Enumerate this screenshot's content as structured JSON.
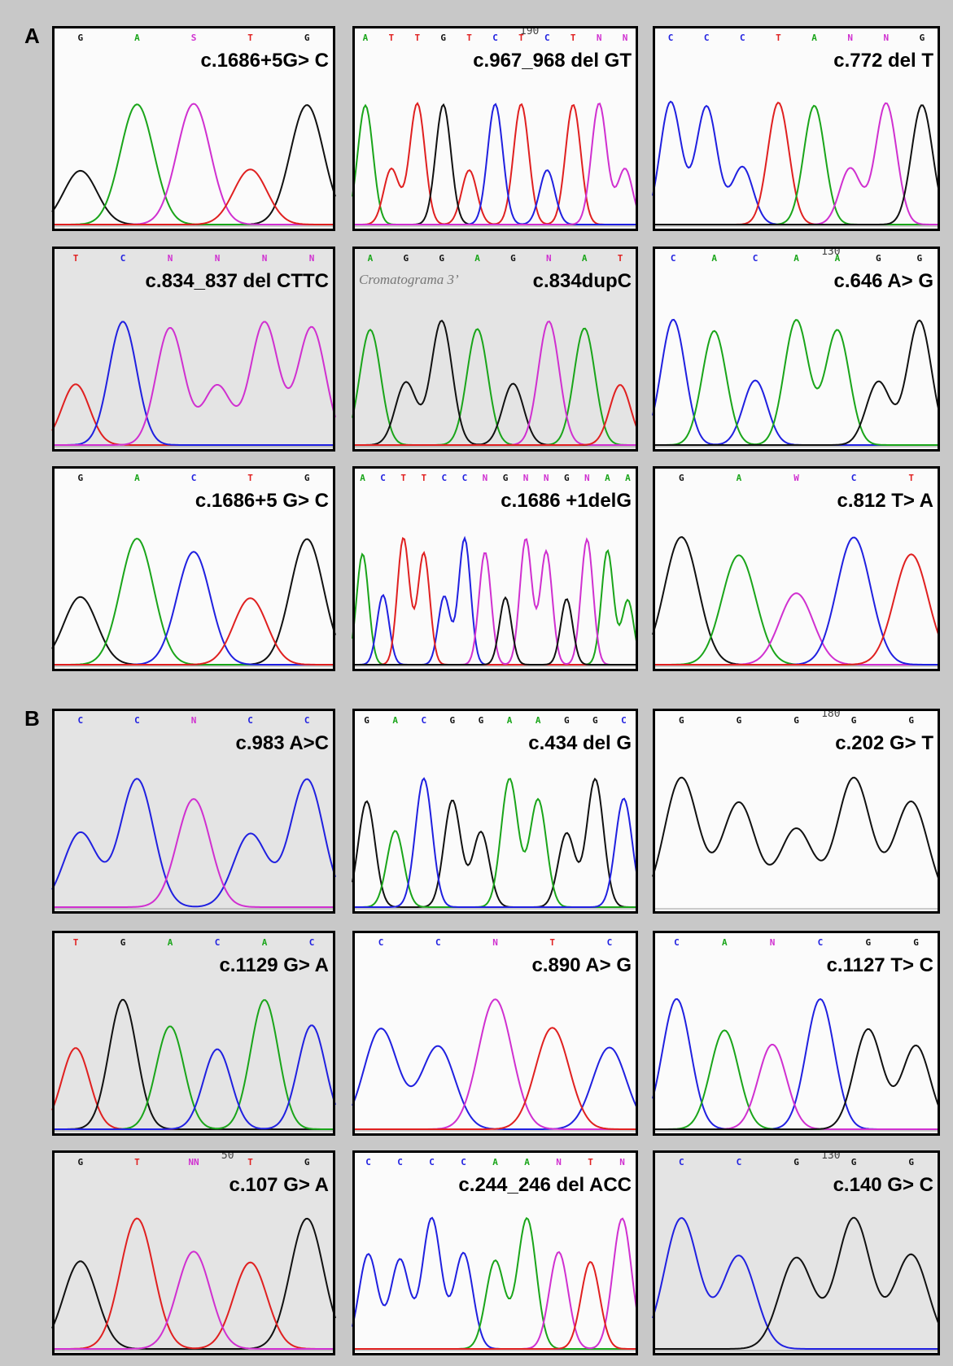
{
  "base_colors": {
    "A": "#1aa51a",
    "C": "#2020e0",
    "G": "#111111",
    "T": "#e02020",
    "other": "#d030d0"
  },
  "sections": [
    {
      "label": "A",
      "panels": [
        {
          "label": "c.1686+5G> C",
          "bases": [
            "G",
            "A",
            "S",
            "T",
            "G"
          ],
          "shaded": false
        },
        {
          "label": "c.967_968 del GT",
          "bases": [
            "A",
            "T",
            "T",
            "G",
            "T",
            "C",
            "T",
            "C",
            "T",
            "N",
            "N"
          ],
          "marker": "190",
          "shaded": false
        },
        {
          "label": "c.772 del T",
          "bases": [
            "C",
            "C",
            "C",
            "T",
            "A",
            "N",
            "N",
            "G"
          ],
          "shaded": false
        },
        {
          "label": "c.834_837 del CTTC",
          "bases": [
            "T",
            "C",
            "N",
            "N",
            "N",
            "N"
          ],
          "shaded": true
        },
        {
          "label": "c.834dupC",
          "bases": [
            "A",
            "G",
            "G",
            "A",
            "G",
            "N",
            "A",
            "T"
          ],
          "note": "Cromatograma 3’",
          "shaded": true
        },
        {
          "label": "c.646 A> G",
          "bases": [
            "C",
            "A",
            "C",
            "A",
            "A",
            "G",
            "G"
          ],
          "marker": "130",
          "shaded": false
        },
        {
          "label": "c.1686+5 G> C",
          "bases": [
            "G",
            "A",
            "C",
            "T",
            "G"
          ],
          "shaded": false
        },
        {
          "label": "c.1686 +1delG",
          "bases": [
            "A",
            "C",
            "T",
            "T",
            "C",
            "C",
            "N",
            "G",
            "N",
            "N",
            "G",
            "N",
            "A",
            "A"
          ],
          "shaded": false
        },
        {
          "label": "c.812 T> A",
          "bases": [
            "G",
            "A",
            "W",
            "C",
            "T"
          ],
          "shaded": false
        }
      ]
    },
    {
      "label": "B",
      "panels": [
        {
          "label": "c.983 A>C",
          "bases": [
            "C",
            "C",
            "N",
            "C",
            "C"
          ],
          "shaded": true
        },
        {
          "label": "c.434 del G",
          "bases": [
            "G",
            "A",
            "C",
            "G",
            "G",
            "A",
            "A",
            "G",
            "G",
            "C"
          ],
          "shaded": false
        },
        {
          "label": "c.202 G> T",
          "bases": [
            "G",
            "G",
            "G",
            "G",
            "G"
          ],
          "marker": "180",
          "shaded": false
        },
        {
          "label": "c.1129 G> A",
          "bases": [
            "T",
            "G",
            "A",
            "C",
            "A",
            "C"
          ],
          "shaded": true
        },
        {
          "label": "c.890 A> G",
          "bases": [
            "C",
            "C",
            "N",
            "T",
            "C"
          ],
          "shaded": false
        },
        {
          "label": "c.1127 T> C",
          "bases": [
            "C",
            "A",
            "N",
            "C",
            "G",
            "G"
          ],
          "shaded": false
        },
        {
          "label": "c.107 G> A",
          "bases": [
            "G",
            "T",
            "NN",
            "T",
            "G"
          ],
          "marker": "50",
          "shaded": true
        },
        {
          "label": "c.244_246 del ACC",
          "bases": [
            "C",
            "C",
            "C",
            "C",
            "A",
            "A",
            "N",
            "T",
            "N"
          ],
          "shaded": false
        },
        {
          "label": "c.140 G> C",
          "bases": [
            "C",
            "C",
            "G",
            "G",
            "G"
          ],
          "marker": "130",
          "shaded": true
        }
      ]
    }
  ]
}
